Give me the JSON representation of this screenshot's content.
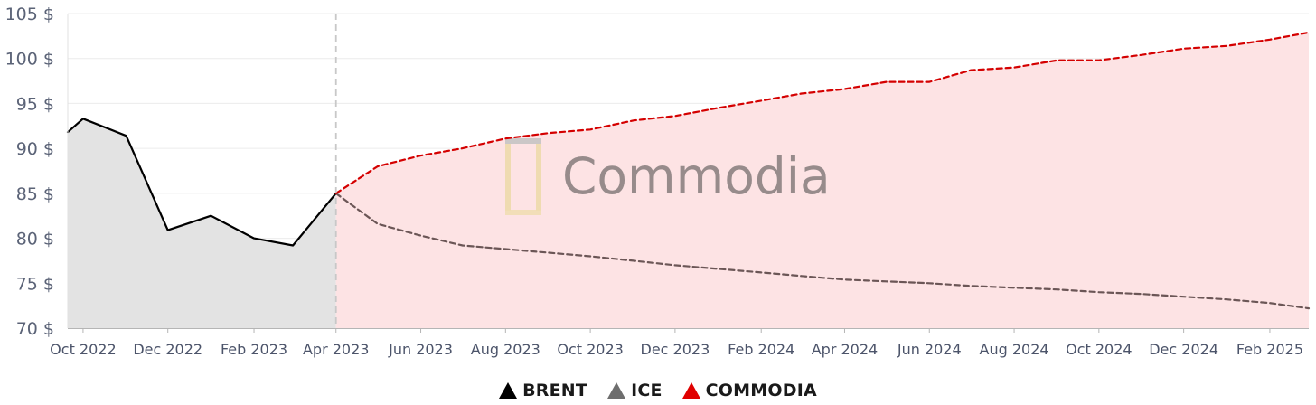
{
  "chart_data": {
    "type": "line",
    "title": "",
    "xlabel": "",
    "ylabel": "",
    "ylim": [
      70,
      105
    ],
    "y_ticks": [
      "105 $",
      "100 $",
      "95 $",
      "90 $",
      "85 $",
      "80 $",
      "75 $",
      "70 $"
    ],
    "x_ticks": [
      "Oct 2022",
      "Dec 2022",
      "Feb 2023",
      "Apr 2023",
      "Jun 2023",
      "Aug 2023",
      "Oct 2023",
      "Dec 2023",
      "Feb 2024",
      "Apr 2024",
      "Jun 2024",
      "Aug 2024",
      "Oct 2024",
      "Dec 2024",
      "Feb 2025"
    ],
    "divider_at": "Apr 2023",
    "watermark": "Commodia",
    "series": [
      {
        "name": "BRENT",
        "color": "#000000",
        "style": "solid",
        "fill": "#e3e3e3",
        "points": [
          [
            "2022-09-20",
            91.8
          ],
          [
            "2022-10-01",
            93.3
          ],
          [
            "2022-11-01",
            91.4
          ],
          [
            "2022-12-01",
            80.9
          ],
          [
            "2023-01-01",
            82.5
          ],
          [
            "2023-02-01",
            80.0
          ],
          [
            "2023-03-01",
            79.2
          ],
          [
            "2023-04-01",
            85.0
          ]
        ]
      },
      {
        "name": "ICE",
        "color": "#6b5656",
        "style": "dashed",
        "points": [
          [
            "2023-04-01",
            85.0
          ],
          [
            "2023-05-01",
            81.6
          ],
          [
            "2023-06-01",
            80.3
          ],
          [
            "2023-07-01",
            79.2
          ],
          [
            "2023-08-01",
            78.8
          ],
          [
            "2023-09-01",
            78.4
          ],
          [
            "2023-10-01",
            78.0
          ],
          [
            "2023-11-01",
            77.5
          ],
          [
            "2023-12-01",
            77.0
          ],
          [
            "2024-01-01",
            76.6
          ],
          [
            "2024-02-01",
            76.2
          ],
          [
            "2024-03-01",
            75.8
          ],
          [
            "2024-04-01",
            75.4
          ],
          [
            "2024-05-01",
            75.2
          ],
          [
            "2024-06-01",
            75.0
          ],
          [
            "2024-07-01",
            74.7
          ],
          [
            "2024-08-01",
            74.5
          ],
          [
            "2024-09-01",
            74.3
          ],
          [
            "2024-10-01",
            74.0
          ],
          [
            "2024-11-01",
            73.8
          ],
          [
            "2024-12-01",
            73.5
          ],
          [
            "2025-01-01",
            73.2
          ],
          [
            "2025-02-01",
            72.8
          ],
          [
            "2025-03-01",
            72.2
          ]
        ]
      },
      {
        "name": "COMMODIA",
        "color": "#d40000",
        "style": "dashed",
        "fill": "#fde3e4",
        "points": [
          [
            "2023-04-01",
            85.0
          ],
          [
            "2023-05-01",
            88.0
          ],
          [
            "2023-06-01",
            89.2
          ],
          [
            "2023-07-01",
            90.0
          ],
          [
            "2023-08-01",
            91.1
          ],
          [
            "2023-09-01",
            91.7
          ],
          [
            "2023-10-01",
            92.1
          ],
          [
            "2023-11-01",
            93.1
          ],
          [
            "2023-12-01",
            93.6
          ],
          [
            "2024-01-01",
            94.5
          ],
          [
            "2024-02-01",
            95.3
          ],
          [
            "2024-03-01",
            96.1
          ],
          [
            "2024-04-01",
            96.6
          ],
          [
            "2024-05-01",
            97.4
          ],
          [
            "2024-06-01",
            97.4
          ],
          [
            "2024-07-01",
            98.7
          ],
          [
            "2024-08-01",
            99.0
          ],
          [
            "2024-09-01",
            99.8
          ],
          [
            "2024-10-01",
            99.8
          ],
          [
            "2024-11-01",
            100.4
          ],
          [
            "2024-12-01",
            101.1
          ],
          [
            "2025-01-01",
            101.4
          ],
          [
            "2025-02-01",
            102.1
          ],
          [
            "2025-03-01",
            102.9
          ]
        ]
      }
    ],
    "grid": true,
    "legend_position": "bottom-center"
  },
  "legend": [
    {
      "name": "BRENT",
      "color": "#000000"
    },
    {
      "name": "ICE",
      "color": "#6e6e6e"
    },
    {
      "name": "COMMODIA",
      "color": "#e00000"
    }
  ]
}
